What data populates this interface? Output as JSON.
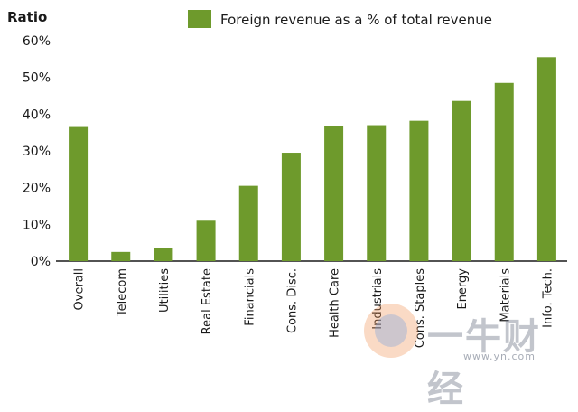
{
  "chart_data": {
    "type": "bar",
    "title": "",
    "ylabel": "Ratio",
    "xlabel": "",
    "ylim": [
      0,
      60
    ],
    "yticks": [
      "0%",
      "10%",
      "20%",
      "30%",
      "40%",
      "50%",
      "60%"
    ],
    "yticks_values": [
      0,
      10,
      20,
      30,
      40,
      50,
      60
    ],
    "legend_position": "top",
    "grid": false,
    "categories": [
      "Overall",
      "Telecom",
      "Utilities",
      "Real Estate",
      "Financials",
      "Cons. Disc.",
      "Health Care",
      "Industrials",
      "Cons. Staples",
      "Energy",
      "Materials",
      "Info. Tech."
    ],
    "series": [
      {
        "name": "Foreign revenue as a % of total revenue",
        "color": "#6e9a2c",
        "values": [
          36.5,
          2.5,
          3.5,
          11.0,
          20.5,
          29.5,
          36.8,
          37.0,
          38.2,
          43.6,
          48.5,
          55.5
        ]
      }
    ]
  },
  "watermark": {
    "brand": "一牛财经",
    "url": "www.yn.com"
  }
}
